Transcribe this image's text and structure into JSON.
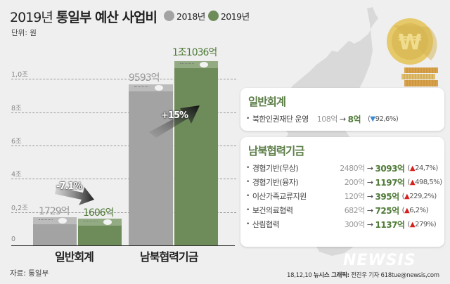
{
  "header": {
    "title_year": "2019년",
    "title_main": "통일부 예산 사업비",
    "unit": "단위: 원",
    "legend": [
      {
        "label": "2018년",
        "color": "#a3a3a3"
      },
      {
        "label": "2019년",
        "color": "#6e8c5a"
      }
    ]
  },
  "colors": {
    "gray": "#a3a3a3",
    "green": "#6e8c5a",
    "green_text": "#4f7a37",
    "up": "#d6211e",
    "down": "#3a8ad0"
  },
  "chart_data": {
    "type": "bar",
    "title": "2019년 통일부 예산 사업비",
    "ylabel": "단위: 원",
    "categories": [
      "일반회계",
      "남북협력기금"
    ],
    "series": [
      {
        "name": "2018년",
        "values_eok": [
          1729,
          9593
        ],
        "labels": [
          "1729억",
          "9593억"
        ]
      },
      {
        "name": "2019년",
        "values_eok": [
          1606,
          11036
        ],
        "labels": [
          "1606억",
          "1조1036억"
        ]
      }
    ],
    "changes": [
      "-7.1%",
      "+15%"
    ],
    "yticks": [
      "0",
      "0,2조",
      "4조",
      "6조",
      "8조",
      "1,0조"
    ],
    "ylim": [
      0,
      12000
    ],
    "grid": true,
    "legend_position": "top"
  },
  "chart": {
    "ticks": [
      "1,0조",
      "8조",
      "6조",
      "4조",
      "0,2조",
      "0"
    ],
    "groups": [
      {
        "category": "일반회계",
        "label_2018": "1729억",
        "label_2019": "1606억",
        "change": "-7.1%"
      },
      {
        "category": "남북협력기금",
        "label_2018": "9593억",
        "label_2019": "1조1036억",
        "change": "+15%"
      }
    ]
  },
  "panels": {
    "general": {
      "title": "일반회계",
      "rows": [
        {
          "name": "북한인권재단 운영",
          "before": "108억",
          "after": "8억",
          "dir": "▼",
          "change": "92,6%"
        }
      ]
    },
    "fund": {
      "title": "남북협력기금",
      "rows": [
        {
          "name": "경협기반(무상)",
          "before": "2480억",
          "after": "3093억",
          "dir": "▲",
          "change": "24,7%"
        },
        {
          "name": "경협기반(융자)",
          "before": "200억",
          "after": "1197억",
          "dir": "▲",
          "change": "498,5%"
        },
        {
          "name": "이산가족교류지원",
          "before": "120억",
          "after": "395억",
          "dir": "▲",
          "change": "229,2%"
        },
        {
          "name": "보건의료협력",
          "before": "682억",
          "after": "725억",
          "dir": "▲",
          "change": "6,2%"
        },
        {
          "name": "산림협력",
          "before": "300억",
          "after": "1137억",
          "dir": "▲",
          "change": "279%"
        }
      ]
    }
  },
  "footer": {
    "source": "자료: 통일부",
    "brand": "NEWSIS",
    "date": "18,12,10",
    "graphic_label": "뉴시스 그래픽:",
    "author": "전진우 기자 618tue@newsis,com"
  },
  "symbols": {
    "bullet": "•",
    "arrow": "→",
    "open": "(",
    "close": ")",
    "won": "₩"
  }
}
